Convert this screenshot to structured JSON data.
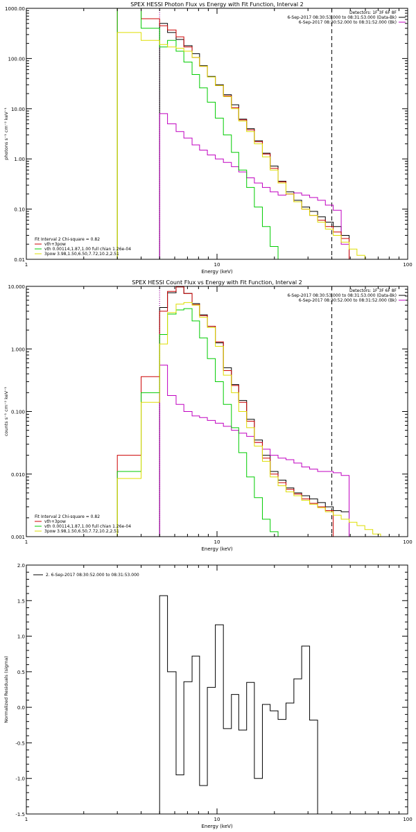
{
  "chart_data": [
    {
      "type": "line",
      "title": "SPEX HESSI Photon Flux vs Energy with Fit Function, Interval 2",
      "xlabel": "Energy (keV)",
      "ylabel": "photons s⁻¹ cm⁻² keV⁻¹",
      "xscale": "log",
      "yscale": "log",
      "xlim": [
        1,
        100
      ],
      "ylim": [
        0.01,
        1000
      ],
      "xticks": [
        {
          "v": 1,
          "t": "1"
        },
        {
          "v": 10,
          "t": "10"
        },
        {
          "v": 100,
          "t": "100"
        }
      ],
      "yticks": [
        {
          "v": 0.01,
          "t": "0.01"
        },
        {
          "v": 0.1,
          "t": "0.10"
        },
        {
          "v": 1,
          "t": "1.00"
        },
        {
          "v": 10,
          "t": "10.00"
        },
        {
          "v": 100,
          "t": "100.00"
        },
        {
          "v": 1000,
          "t": "1000.00"
        }
      ],
      "vlines": [
        {
          "x": 5,
          "style": "dotted",
          "color": "#000000"
        },
        {
          "x": 5,
          "style": "dotted",
          "color": "#c000c0"
        },
        {
          "x": 40,
          "style": "dashed",
          "color": "#000000"
        }
      ],
      "legend_topright": [
        "Detectors: 1F 3F 6F 8F",
        "6-Sep-2017 08:30:53.000 to 08:31:53.000 (Data-Bk)",
        "6-Sep-2017 08:30:52.000 to 08:31:52.000 (Bk)"
      ],
      "legend_topright_colors": [
        "",
        "#000000",
        "#c000c0"
      ],
      "legend_bottomleft": [
        "Fit Interval 2   Chi-square = 0.82",
        "vth+3pow",
        "vth 0.00114,1.87,1.00  full chian 1.26e-04",
        "3pow 3.98,1.50,6.50,7.72,10.2,2.51"
      ],
      "legend_bottomleft_colors": [
        "",
        "#cc0000",
        "#00cc00",
        "#dddd00"
      ],
      "edges": [
        3,
        4,
        5,
        5.5,
        6.1,
        6.7,
        7.4,
        8.1,
        8.9,
        9.8,
        10.8,
        11.9,
        13,
        14.3,
        15.7,
        17.3,
        19,
        20.9,
        23,
        25.3,
        27.8,
        30.6,
        33.7,
        37,
        40.7,
        44.8,
        49.3,
        54.2,
        59.6
      ],
      "series": [
        {
          "name": "Data-Bk",
          "color": "#000000",
          "i0": 2,
          "values": [
            500,
            330,
            240,
            180,
            125,
            72,
            44,
            30,
            19,
            12,
            6.2,
            4,
            2.3,
            1.3,
            0.72,
            0.36,
            0.22,
            0.15,
            0.11,
            0.09,
            0.07,
            0.055,
            0.045,
            0.03
          ]
        },
        {
          "name": "Bk",
          "color": "#c000c0",
          "i0": 2,
          "values": [
            8,
            5,
            3.5,
            2.6,
            1.9,
            1.5,
            1.2,
            1.0,
            0.85,
            0.7,
            0.55,
            0.42,
            0.33,
            0.27,
            0.22,
            0.19,
            0.2,
            0.21,
            0.19,
            0.17,
            0.15,
            0.12,
            0.095,
            0.02
          ]
        },
        {
          "name": "vth+3pow",
          "color": "#cc0000",
          "i0": 0,
          "values": [
            1000,
            620,
            450,
            370,
            270,
            170,
            105,
            70,
            43,
            29,
            18,
            10.5,
            6,
            3.8,
            2.2,
            1.25,
            0.65,
            0.35,
            0.2,
            0.14,
            0.1,
            0.075,
            0.06,
            0.045,
            0.035,
            0.026
          ]
        },
        {
          "name": "vth",
          "color": "#00cc00",
          "i0": 0,
          "values": [
            1000,
            400,
            170,
            230,
            140,
            85,
            48,
            26,
            13.5,
            6.5,
            3,
            1.35,
            0.6,
            0.27,
            0.11,
            0.045,
            0.018,
            0.009
          ]
        },
        {
          "name": "3pow",
          "color": "#dddd00",
          "i0": 0,
          "values": [
            330,
            230,
            190,
            170,
            160,
            140,
            105,
            70,
            43,
            29,
            17.5,
            10,
            5.7,
            3.5,
            2.0,
            1.1,
            0.6,
            0.33,
            0.2,
            0.14,
            0.1,
            0.075,
            0.055,
            0.04,
            0.03,
            0.022,
            0.016,
            0.012
          ]
        }
      ]
    },
    {
      "type": "line",
      "title": "SPEX HESSI Count Flux vs Energy with Fit Function, Interval 2",
      "xlabel": "Energy (keV)",
      "ylabel": "counts s⁻¹ cm⁻² keV⁻¹",
      "xscale": "log",
      "yscale": "log",
      "xlim": [
        1,
        100
      ],
      "ylim": [
        0.001,
        10
      ],
      "xticks": [
        {
          "v": 1,
          "t": "1"
        },
        {
          "v": 10,
          "t": "10"
        },
        {
          "v": 100,
          "t": "100"
        }
      ],
      "yticks": [
        {
          "v": 0.001,
          "t": "0.001"
        },
        {
          "v": 0.01,
          "t": "0.010"
        },
        {
          "v": 0.1,
          "t": "0.100"
        },
        {
          "v": 1,
          "t": "1.000"
        },
        {
          "v": 10,
          "t": "10.000"
        }
      ],
      "vlines": [
        {
          "x": 5,
          "style": "dotted",
          "color": "#000000"
        },
        {
          "x": 5,
          "style": "dotted",
          "color": "#c000c0"
        },
        {
          "x": 40,
          "style": "dashed",
          "color": "#000000"
        }
      ],
      "legend_topright": [
        "Detectors: 1F 3F 6F 8F",
        "6-Sep-2017 08:30:53.000 to 08:31:53.000 (Data-Bk)",
        "6-Sep-2017 08:30:52.000 to 08:31:52.000 (Bk)"
      ],
      "legend_topright_colors": [
        "",
        "#000000",
        "#c000c0"
      ],
      "legend_bottomleft": [
        "Fit Interval 2   Chi-square = 0.82",
        "vth+3pow",
        "vth 0.00114,1.87,1.00  full chian 1.26e-04",
        "3pow 3.98,1.50,6.50,7.72,10.2,2.51"
      ],
      "legend_bottomleft_colors": [
        "",
        "#cc0000",
        "#00cc00",
        "#dddd00"
      ],
      "edges": [
        3,
        4,
        5,
        5.5,
        6.1,
        6.7,
        7.4,
        8.1,
        8.9,
        9.8,
        10.8,
        11.9,
        13,
        14.3,
        15.7,
        17.3,
        19,
        20.9,
        23,
        25.3,
        27.8,
        30.6,
        33.7,
        37,
        40.7,
        44.8,
        49.3,
        54.2,
        59.6,
        65.6,
        72.1
      ],
      "series": [
        {
          "name": "Data-Bk",
          "color": "#000000",
          "i0": 2,
          "values": [
            4.6,
            7.9,
            9.8,
            7.7,
            5.3,
            3.5,
            2.3,
            1.25,
            0.5,
            0.27,
            0.15,
            0.075,
            0.035,
            0.02,
            0.011,
            0.008,
            0.006,
            0.005,
            0.0045,
            0.004,
            0.0035,
            0.003,
            0.0026,
            0.0025
          ]
        },
        {
          "name": "Bk",
          "color": "#c000c0",
          "i0": 2,
          "values": [
            0.55,
            0.18,
            0.13,
            0.1,
            0.085,
            0.08,
            0.072,
            0.065,
            0.058,
            0.05,
            0.045,
            0.04,
            0.032,
            0.025,
            0.02,
            0.018,
            0.017,
            0.015,
            0.013,
            0.012,
            0.011,
            0.011,
            0.0105,
            0.0095
          ]
        },
        {
          "name": "vth+3pow",
          "color": "#cc0000",
          "i0": 0,
          "values": [
            0.02,
            0.36,
            4,
            8.3,
            9.8,
            7.7,
            5.1,
            3.4,
            2.3,
            1.3,
            0.45,
            0.26,
            0.14,
            0.07,
            0.032,
            0.018,
            0.01,
            0.0073,
            0.0057,
            0.0048,
            0.004,
            0.0034,
            0.003,
            0.0026
          ]
        },
        {
          "name": "vth",
          "color": "#00cc00",
          "i0": 0,
          "values": [
            0.011,
            0.2,
            1.7,
            3.6,
            4.2,
            4.4,
            2.8,
            1.5,
            0.7,
            0.3,
            0.13,
            0.055,
            0.022,
            0.009,
            0.0042,
            0.0019,
            0.0012
          ]
        },
        {
          "name": "3pow",
          "color": "#dddd00",
          "i0": 0,
          "values": [
            0.0085,
            0.14,
            1.2,
            3.8,
            5.2,
            5.5,
            5,
            3.2,
            2.2,
            1.1,
            0.38,
            0.2,
            0.1,
            0.055,
            0.028,
            0.016,
            0.009,
            0.0065,
            0.0052,
            0.0045,
            0.0038,
            0.0033,
            0.0029,
            0.0025,
            0.0022,
            0.0019,
            0.0017,
            0.0015,
            0.0013,
            0.0011
          ]
        }
      ]
    },
    {
      "type": "line",
      "title": "",
      "xlabel": "Energy (keV)",
      "ylabel": "Normalized Residuals (sigma)",
      "xscale": "log",
      "yscale": "linear",
      "xlim": [
        1,
        100
      ],
      "ylim": [
        -1.5,
        2.0
      ],
      "xticks": [
        {
          "v": 1,
          "t": "1"
        },
        {
          "v": 10,
          "t": "10"
        },
        {
          "v": 100,
          "t": "100"
        }
      ],
      "yticks": [
        {
          "v": -1.5,
          "t": "-1.5"
        },
        {
          "v": -1.0,
          "t": "-1.0"
        },
        {
          "v": -0.5,
          "t": "-0.5"
        },
        {
          "v": 0,
          "t": "0.0"
        },
        {
          "v": 0.5,
          "t": "0.5"
        },
        {
          "v": 1.0,
          "t": "1.0"
        },
        {
          "v": 1.5,
          "t": "1.5"
        },
        {
          "v": 2.0,
          "t": "2.0"
        }
      ],
      "legend_topleft": [
        "2.  6-Sep-2017 08:30:52.000 to 08:31:53.000"
      ],
      "edges": [
        5,
        5.5,
        6.1,
        6.7,
        7.4,
        8.1,
        8.9,
        9.8,
        10.8,
        11.9,
        13,
        14.3,
        15.7,
        17.3,
        19,
        20.9,
        23,
        25.3,
        27.8,
        30.6,
        33.7,
        37,
        40.7
      ],
      "series": [
        {
          "name": "residuals",
          "color": "#000000",
          "i0": 0,
          "values": [
            1.57,
            0.5,
            -0.95,
            0.36,
            0.72,
            -1.1,
            0.28,
            1.16,
            -0.3,
            0.18,
            -0.32,
            0.35,
            -1.0,
            0.04,
            -0.05,
            -0.17,
            0.06,
            0.4,
            0.86,
            -0.18
          ],
          "close_to_bottom": true
        }
      ]
    }
  ]
}
